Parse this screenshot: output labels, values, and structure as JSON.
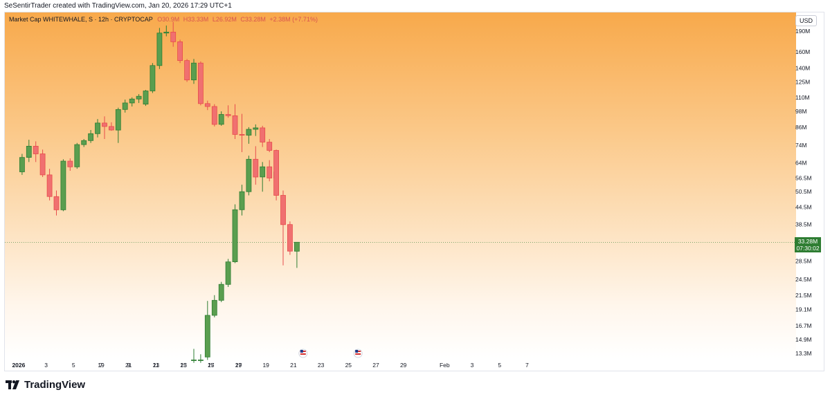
{
  "header": {
    "text": "SeSentirTrader created with TradingView.com, Jan 20, 2026 17:29 UTC+1"
  },
  "legend": {
    "symbol": "Market Cap WHITEWHALE, S · 12h · CRYPTOCAP",
    "open": "O30.9M",
    "high": "H33.33M",
    "low": "L26.92M",
    "close": "C33.28M",
    "change": "+2.38M (+7.71%)"
  },
  "currency": "USD",
  "price_box": {
    "value": "33.28M",
    "countdown": "07:30:02"
  },
  "footer": {
    "brand": "TradingView"
  },
  "colors": {
    "up": "#2e7d32",
    "up_fill": "#5a9e4f",
    "down": "#e74c4c",
    "down_fill": "#f07070",
    "axis_text": "#131722"
  },
  "icons": {
    "event_marker": "us-flag-icon",
    "logo": "tradingview-logo-icon"
  },
  "chart_data": {
    "type": "candlestick",
    "scale": "log",
    "y_ticks": [
      "190M",
      "160M",
      "140M",
      "125M",
      "110M",
      "98M",
      "86M",
      "74M",
      "64M",
      "56.5M",
      "50.5M",
      "44.5M",
      "38.5M",
      "28.5M",
      "24.5M",
      "21.5M",
      "19.1M",
      "16.7M",
      "14.9M",
      "13.3M"
    ],
    "y_tick_values": [
      190,
      160,
      140,
      125,
      110,
      98,
      86,
      74,
      64,
      56.5,
      50.5,
      44.5,
      38.5,
      28.5,
      24.5,
      21.5,
      19.1,
      16.7,
      14.9,
      13.3
    ],
    "x_ticks": [
      "19",
      "21",
      "23",
      "25",
      "27",
      "29",
      "2026",
      "3",
      "5",
      "7",
      "9",
      "11",
      "13",
      "15",
      "17",
      "19",
      "21",
      "23",
      "25",
      "27",
      "29",
      "Feb",
      "3",
      "5",
      "7"
    ],
    "x_tick_dates": [
      "Dec 19",
      "Dec 21",
      "Dec 23",
      "Dec 25",
      "Dec 27",
      "Dec 29",
      "Jan 1",
      "Jan 3",
      "Jan 5",
      "Jan 7",
      "Jan 9",
      "Jan 11",
      "Jan 13",
      "Jan 15",
      "Jan 17",
      "Jan 19",
      "Jan 21",
      "Jan 23",
      "Jan 25",
      "Jan 27",
      "Jan 29",
      "Feb 1",
      "Feb 3",
      "Feb 5",
      "Feb 7"
    ],
    "candles": [
      {
        "t": "Dec 25 12:00",
        "o": 12.6,
        "h": 13.8,
        "l": 12.3,
        "c": 12.6
      },
      {
        "t": "Dec 26 00:00",
        "o": 12.6,
        "h": 13.2,
        "l": 12.3,
        "c": 12.6
      },
      {
        "t": "Dec 26 12:00",
        "o": 12.9,
        "h": 20.5,
        "l": 12.6,
        "c": 18.2
      },
      {
        "t": "Dec 27 00:00",
        "o": 18.2,
        "h": 21.5,
        "l": 17.9,
        "c": 20.6
      },
      {
        "t": "Dec 27 12:00",
        "o": 20.6,
        "h": 24.0,
        "l": 20.3,
        "c": 23.5
      },
      {
        "t": "Dec 28 00:00",
        "o": 23.5,
        "h": 29.0,
        "l": 23.0,
        "c": 28.3
      },
      {
        "t": "Dec 28 12:00",
        "o": 28.3,
        "h": 45.5,
        "l": 28.0,
        "c": 43.5
      },
      {
        "t": "Dec 29 00:00",
        "o": 43.5,
        "h": 53.5,
        "l": 41.5,
        "c": 50.5
      },
      {
        "t": "Dec 29 12:00",
        "o": 50.5,
        "h": 68.0,
        "l": 49.0,
        "c": 66.0
      },
      {
        "t": "Dec 30 00:00",
        "o": 66.0,
        "h": 73.5,
        "l": 53.5,
        "c": 57.0
      },
      {
        "t": "Dec 30 12:00",
        "o": 57.0,
        "h": 64.5,
        "l": 50.5,
        "c": 62.0
      },
      {
        "t": "Dec 31 00:00",
        "o": 62.0,
        "h": 65.5,
        "l": 55.0,
        "c": 56.5
      },
      {
        "t": "Dec 31 12:00",
        "o": 56.5,
        "h": 62.5,
        "l": 52.5,
        "c": 59.5
      },
      {
        "t": "Jan 1 00:00",
        "o": 59.5,
        "h": 69.0,
        "l": 58.0,
        "c": 67.0
      },
      {
        "t": "Jan 1 12:00",
        "o": 67.0,
        "h": 77.5,
        "l": 64.5,
        "c": 73.5
      },
      {
        "t": "Jan 2 00:00",
        "o": 73.5,
        "h": 76.5,
        "l": 64.5,
        "c": 69.0
      },
      {
        "t": "Jan 2 12:00",
        "o": 69.0,
        "h": 71.5,
        "l": 57.0,
        "c": 58.0
      },
      {
        "t": "Jan 3 00:00",
        "o": 58.0,
        "h": 61.0,
        "l": 47.0,
        "c": 48.5
      },
      {
        "t": "Jan 3 12:00",
        "o": 48.5,
        "h": 51.0,
        "l": 41.5,
        "c": 43.5
      },
      {
        "t": "Jan 4 00:00",
        "o": 43.5,
        "h": 66.0,
        "l": 43.0,
        "c": 65.0
      },
      {
        "t": "Jan 4 12:00",
        "o": 65.0,
        "h": 66.5,
        "l": 60.0,
        "c": 62.0
      },
      {
        "t": "Jan 5 00:00",
        "o": 62.0,
        "h": 75.5,
        "l": 61.0,
        "c": 74.5
      },
      {
        "t": "Jan 5 12:00",
        "o": 74.5,
        "h": 78.0,
        "l": 73.0,
        "c": 77.0
      },
      {
        "t": "Jan 6 00:00",
        "o": 77.0,
        "h": 84.0,
        "l": 75.5,
        "c": 81.5
      },
      {
        "t": "Jan 6 12:00",
        "o": 81.5,
        "h": 92.0,
        "l": 79.0,
        "c": 89.0
      },
      {
        "t": "Jan 7 00:00",
        "o": 89.0,
        "h": 94.0,
        "l": 78.0,
        "c": 86.5
      },
      {
        "t": "Jan 7 12:00",
        "o": 86.5,
        "h": 89.5,
        "l": 83.5,
        "c": 84.0
      },
      {
        "t": "Jan 8 00:00",
        "o": 84.0,
        "h": 101.0,
        "l": 75.5,
        "c": 99.5
      },
      {
        "t": "Jan 8 12:00",
        "o": 99.5,
        "h": 108.0,
        "l": 97.0,
        "c": 105.0
      },
      {
        "t": "Jan 9 00:00",
        "o": 105.0,
        "h": 110.0,
        "l": 102.0,
        "c": 108.5
      },
      {
        "t": "Jan 9 12:00",
        "o": 108.5,
        "h": 113.0,
        "l": 105.0,
        "c": 111.0
      },
      {
        "t": "Jan 10 00:00",
        "o": 104.0,
        "h": 117.0,
        "l": 102.5,
        "c": 116.0
      },
      {
        "t": "Jan 10 12:00",
        "o": 116.0,
        "h": 146.0,
        "l": 114.0,
        "c": 143.0
      },
      {
        "t": "Jan 11 00:00",
        "o": 143.0,
        "h": 195.0,
        "l": 139.0,
        "c": 187.0
      },
      {
        "t": "Jan 11 12:00",
        "o": 187.0,
        "h": 199.0,
        "l": 182.0,
        "c": 188.5
      },
      {
        "t": "Jan 12 00:00",
        "o": 188.5,
        "h": 205.0,
        "l": 167.0,
        "c": 174.0
      },
      {
        "t": "Jan 12 12:00",
        "o": 174.0,
        "h": 177.0,
        "l": 146.0,
        "c": 149.0
      },
      {
        "t": "Jan 13 00:00",
        "o": 149.0,
        "h": 151.0,
        "l": 125.0,
        "c": 127.0
      },
      {
        "t": "Jan 13 12:00",
        "o": 127.0,
        "h": 151.0,
        "l": 123.0,
        "c": 146.0
      },
      {
        "t": "Jan 14 00:00",
        "o": 146.0,
        "h": 148.0,
        "l": 103.0,
        "c": 104.5
      },
      {
        "t": "Jan 14 12:00",
        "o": 104.5,
        "h": 107.0,
        "l": 99.0,
        "c": 102.0
      },
      {
        "t": "Jan 15 00:00",
        "o": 102.0,
        "h": 104.0,
        "l": 86.5,
        "c": 88.0
      },
      {
        "t": "Jan 15 12:00",
        "o": 88.0,
        "h": 98.0,
        "l": 87.0,
        "c": 95.5
      },
      {
        "t": "Jan 16 00:00",
        "o": 95.5,
        "h": 103.0,
        "l": 93.0,
        "c": 94.5
      },
      {
        "t": "Jan 16 12:00",
        "o": 94.5,
        "h": 104.0,
        "l": 78.0,
        "c": 81.0
      },
      {
        "t": "Jan 17 00:00",
        "o": 81.0,
        "h": 96.0,
        "l": 70.0,
        "c": 80.5
      },
      {
        "t": "Jan 17 12:00",
        "o": 80.5,
        "h": 86.0,
        "l": 75.0,
        "c": 84.5
      },
      {
        "t": "Jan 18 00:00",
        "o": 84.5,
        "h": 88.0,
        "l": 80.0,
        "c": 85.5
      },
      {
        "t": "Jan 18 12:00",
        "o": 85.5,
        "h": 87.0,
        "l": 73.0,
        "c": 76.0
      },
      {
        "t": "Jan 19 00:00",
        "o": 76.0,
        "h": 78.0,
        "l": 70.0,
        "c": 71.0
      },
      {
        "t": "Jan 19 12:00",
        "o": 71.0,
        "h": 71.5,
        "l": 47.0,
        "c": 49.0
      },
      {
        "t": "Jan 20 00:00",
        "o": 49.0,
        "h": 51.0,
        "l": 27.5,
        "c": 38.5
      },
      {
        "t": "Jan 20 12:00",
        "o": 38.5,
        "h": 39.5,
        "l": 30.0,
        "c": 30.9
      },
      {
        "t": "Jan 21 00:00",
        "o": 30.9,
        "h": 33.33,
        "l": 26.92,
        "c": 33.28
      }
    ],
    "last_price": 33.28
  }
}
